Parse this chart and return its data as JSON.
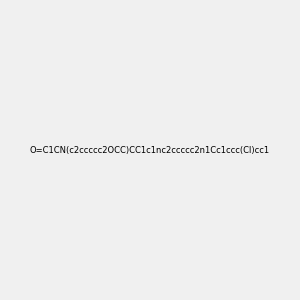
{
  "smiles": "O=C1CN(c2ccccc2OCC)CC1c1nc2ccccc2n1Cc1ccc(Cl)cc1",
  "image_size": 300,
  "background_color": "#f0f0f0",
  "atom_colors": {
    "N": "#0000FF",
    "O": "#FF0000",
    "Cl": "#008000"
  }
}
